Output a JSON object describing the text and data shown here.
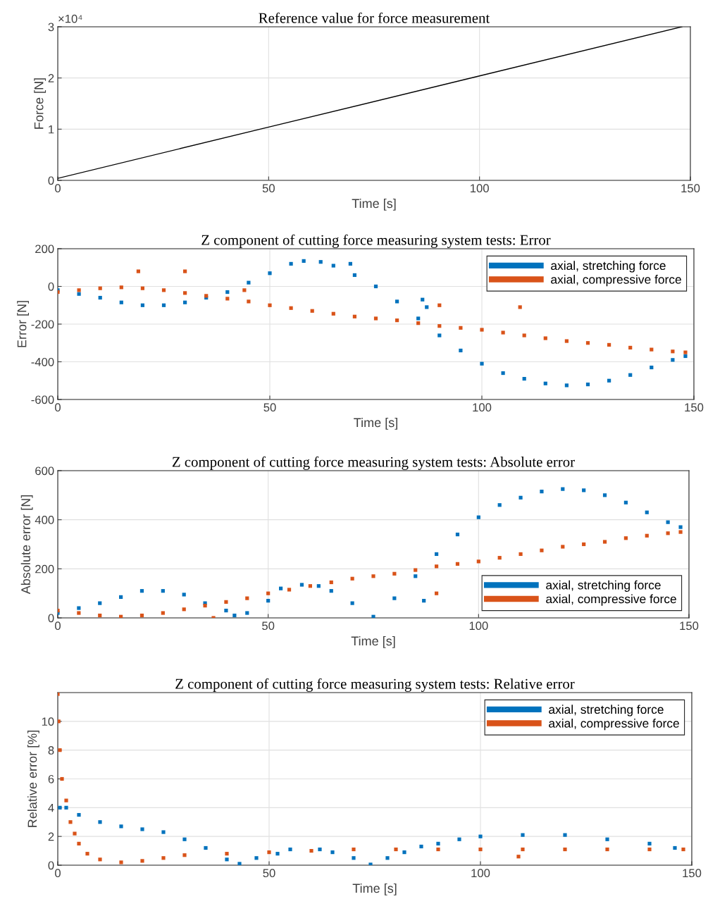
{
  "chart_data": [
    {
      "type": "line",
      "title": "Reference value for force measurement",
      "xlabel": "Time [s]",
      "ylabel": "Force [N]",
      "annotations": [
        "×10⁴"
      ],
      "xlim": [
        0,
        150
      ],
      "xticks": [
        0,
        50,
        100,
        150
      ],
      "ylim": [
        0,
        3
      ],
      "yticks": [
        0,
        1,
        2,
        3
      ],
      "grid": true,
      "legend": false,
      "marker": "none",
      "line_style": "solid",
      "series": [
        {
          "color": "#000000",
          "x": [
            0,
            50,
            100,
            148
          ],
          "values": [
            0.04,
            1.04,
            2.04,
            3.0
          ]
        }
      ]
    },
    {
      "type": "scatter",
      "title": "Z component of cutting force measuring system tests: Error",
      "xlabel": "Time [s]",
      "ylabel": "Error [N]",
      "xlim": [
        0,
        150
      ],
      "xticks": [
        0,
        50,
        100,
        150
      ],
      "ylim": [
        -600,
        200
      ],
      "yticks": [
        -600,
        -400,
        -200,
        0,
        200
      ],
      "grid": true,
      "legend": "top right",
      "marker": "square",
      "series": [
        {
          "name": "axial, stretching force",
          "color": "#0072bd",
          "x": [
            0,
            5,
            10,
            15,
            20,
            25,
            30,
            35,
            40,
            45,
            50,
            55,
            58,
            62,
            65,
            70,
            75,
            80,
            85,
            90,
            95,
            100,
            105,
            110,
            115,
            120,
            125,
            130,
            135,
            140,
            145,
            148,
            69,
            86,
            87
          ],
          "values": [
            -20,
            -40,
            -60,
            -85,
            -100,
            -100,
            -85,
            -60,
            -30,
            20,
            70,
            120,
            135,
            130,
            110,
            60,
            0,
            -80,
            -170,
            -260,
            -340,
            -410,
            -460,
            -490,
            -515,
            -525,
            -520,
            -500,
            -470,
            -430,
            -390,
            -370,
            120,
            -70,
            -110
          ]
        },
        {
          "name": "axial, compressive force",
          "color": "#d95319",
          "x": [
            0,
            5,
            10,
            15,
            20,
            25,
            30,
            35,
            40,
            45,
            50,
            55,
            60,
            65,
            70,
            75,
            80,
            85,
            90,
            95,
            100,
            105,
            110,
            115,
            120,
            125,
            130,
            135,
            140,
            145,
            148,
            19,
            30,
            44,
            90,
            109
          ],
          "values": [
            -30,
            -20,
            -10,
            -5,
            -10,
            -20,
            -35,
            -50,
            -65,
            -80,
            -100,
            -115,
            -130,
            -145,
            -160,
            -170,
            -180,
            -195,
            -210,
            -220,
            -230,
            -245,
            -260,
            -275,
            -290,
            -300,
            -310,
            -325,
            -335,
            -345,
            -350,
            80,
            80,
            -20,
            -100,
            -110
          ]
        }
      ]
    },
    {
      "type": "scatter",
      "title": "Z component of cutting force measuring system tests: Absolute error",
      "xlabel": "Time [s]",
      "ylabel": "Absolute error [N]",
      "xlim": [
        0,
        150
      ],
      "xticks": [
        0,
        50,
        100,
        150
      ],
      "ylim": [
        0,
        600
      ],
      "yticks": [
        0,
        200,
        400,
        600
      ],
      "grid": true,
      "legend": "bottom right",
      "marker": "square",
      "series": [
        {
          "name": "axial, stretching force",
          "color": "#0072bd",
          "x": [
            0,
            5,
            10,
            15,
            20,
            25,
            30,
            35,
            40,
            42,
            45,
            50,
            53,
            58,
            62,
            65,
            70,
            75,
            80,
            85,
            90,
            95,
            100,
            105,
            110,
            115,
            120,
            125,
            130,
            135,
            140,
            145,
            148,
            87
          ],
          "values": [
            20,
            40,
            60,
            85,
            110,
            110,
            95,
            60,
            30,
            10,
            20,
            70,
            120,
            135,
            130,
            110,
            60,
            5,
            80,
            170,
            260,
            340,
            410,
            460,
            490,
            515,
            525,
            520,
            500,
            470,
            430,
            390,
            370,
            70
          ]
        },
        {
          "name": "axial, compressive force",
          "color": "#d95319",
          "x": [
            0,
            5,
            10,
            15,
            20,
            25,
            30,
            35,
            40,
            45,
            50,
            55,
            60,
            65,
            70,
            75,
            80,
            85,
            90,
            95,
            100,
            105,
            110,
            115,
            120,
            125,
            130,
            135,
            140,
            145,
            148,
            37,
            90
          ],
          "values": [
            30,
            20,
            10,
            5,
            10,
            20,
            35,
            50,
            65,
            80,
            100,
            115,
            130,
            145,
            160,
            170,
            180,
            195,
            210,
            220,
            230,
            245,
            260,
            275,
            290,
            300,
            310,
            325,
            335,
            345,
            350,
            0,
            100
          ]
        }
      ]
    },
    {
      "type": "scatter",
      "title": "Z component of cutting force measuring system tests: Relative error",
      "xlabel": "Time [s]",
      "ylabel": "Relative error [%]",
      "xlim": [
        0,
        150
      ],
      "xticks": [
        0,
        50,
        100,
        150
      ],
      "ylim": [
        0,
        12
      ],
      "yticks": [
        0,
        2,
        4,
        6,
        8,
        10
      ],
      "grid": true,
      "legend": "top right",
      "marker": "square",
      "series": [
        {
          "name": "axial, stretching force",
          "color": "#0072bd",
          "x": [
            0.5,
            2,
            5,
            10,
            15,
            20,
            25,
            30,
            35,
            40,
            43,
            47,
            52,
            55,
            62,
            65,
            70,
            74,
            78,
            82,
            86,
            90,
            95,
            100,
            110,
            120,
            130,
            140,
            146
          ],
          "values": [
            4,
            4,
            3.5,
            3,
            2.7,
            2.5,
            2.3,
            1.8,
            1.2,
            0.4,
            0.1,
            0.5,
            0.8,
            1.1,
            1.1,
            0.9,
            0.5,
            0.05,
            0.5,
            0.9,
            1.3,
            1.5,
            1.8,
            2,
            2.1,
            2.1,
            1.8,
            1.5,
            1.2
          ]
        },
        {
          "name": "axial, compressive force",
          "color": "#d95319",
          "x": [
            0,
            0.2,
            0.5,
            1,
            2,
            3,
            4,
            5,
            7,
            10,
            15,
            20,
            25,
            30,
            40,
            50,
            60,
            70,
            80,
            90,
            100,
            110,
            120,
            130,
            140,
            148,
            109
          ],
          "values": [
            11.9,
            10,
            8,
            6,
            4.5,
            3,
            2.2,
            1.5,
            0.8,
            0.4,
            0.2,
            0.3,
            0.5,
            0.7,
            0.8,
            0.9,
            1,
            1.1,
            1.1,
            1.1,
            1.1,
            1.1,
            1.1,
            1.1,
            1.1,
            1.1,
            0.6
          ]
        }
      ]
    }
  ]
}
